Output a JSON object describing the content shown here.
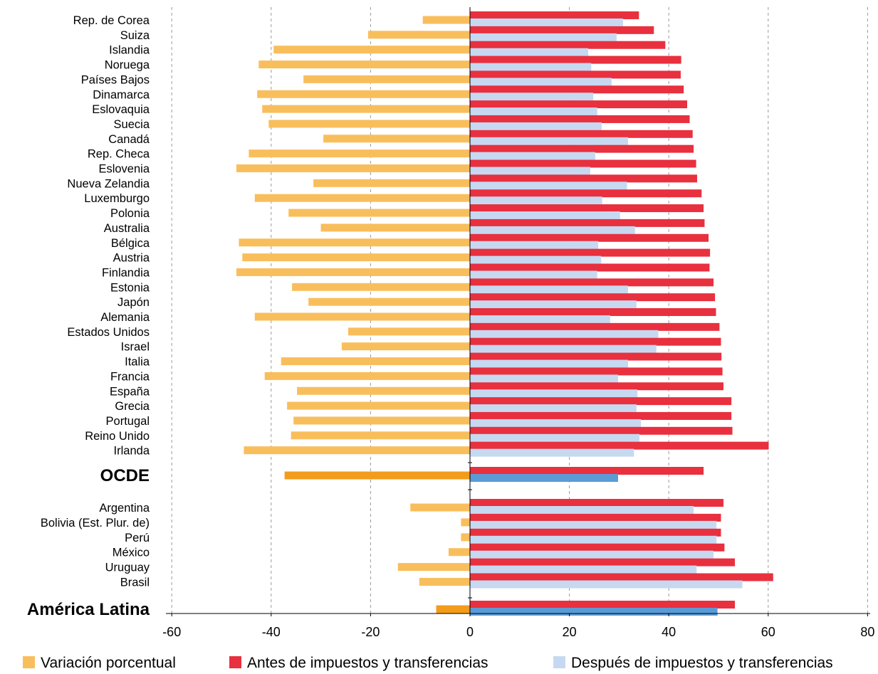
{
  "chart_data": {
    "type": "bar",
    "orientation": "horizontal",
    "grid": "vertical-dashed",
    "legend_position": "bottom",
    "xlim": [
      -60,
      80
    ],
    "x_ticks": [
      "-60",
      "-40",
      "-20",
      "0",
      "20",
      "40",
      "60",
      "80"
    ],
    "colors": {
      "variacion": "#f9be5c",
      "variacion_highlight": "#f39c1c",
      "antes": "#e8303f",
      "despues": "#c6d9f1",
      "despues_highlight": "#5b9bd5",
      "grid": "#999999"
    },
    "series_names": [
      "Variación porcentual",
      "Antes de impuestos y transferencias",
      "Después de impuestos y transferencias"
    ],
    "rows": [
      {
        "label": "Rep. de Corea",
        "bold": false,
        "variacion": -9.5,
        "antes": 34,
        "despues": 30.8
      },
      {
        "label": "Suiza",
        "bold": false,
        "variacion": -20.5,
        "antes": 37,
        "despues": 29.5
      },
      {
        "label": "Islandia",
        "bold": false,
        "variacion": -39.5,
        "antes": 39.3,
        "despues": 23.8
      },
      {
        "label": "Noruega",
        "bold": false,
        "variacion": -42.5,
        "antes": 42.5,
        "despues": 24.4
      },
      {
        "label": "Países Bajos",
        "bold": false,
        "variacion": -33.5,
        "antes": 42.4,
        "despues": 28.5
      },
      {
        "label": "Dinamarca",
        "bold": false,
        "variacion": -42.8,
        "antes": 43,
        "despues": 24.8
      },
      {
        "label": "Eslovaquia",
        "bold": false,
        "variacion": -41.8,
        "antes": 43.7,
        "despues": 25.6
      },
      {
        "label": "Suecia",
        "bold": false,
        "variacion": -40.5,
        "antes": 44.2,
        "despues": 26.5
      },
      {
        "label": "Canadá",
        "bold": false,
        "variacion": -29.5,
        "antes": 44.8,
        "despues": 31.8
      },
      {
        "label": "Rep. Checa",
        "bold": false,
        "variacion": -44.5,
        "antes": 45,
        "despues": 25.2
      },
      {
        "label": "Eslovenia",
        "bold": false,
        "variacion": -47,
        "antes": 45.5,
        "despues": 24.2
      },
      {
        "label": "Nueva Zelandia",
        "bold": false,
        "variacion": -31.5,
        "antes": 45.7,
        "despues": 31.6
      },
      {
        "label": "Luxemburgo",
        "bold": false,
        "variacion": -43.3,
        "antes": 46.6,
        "despues": 26.6
      },
      {
        "label": "Polonia",
        "bold": false,
        "variacion": -36.5,
        "antes": 47,
        "despues": 30.2
      },
      {
        "label": "Australia",
        "bold": false,
        "variacion": -30,
        "antes": 47.2,
        "despues": 33.2
      },
      {
        "label": "Bélgica",
        "bold": false,
        "variacion": -46.5,
        "antes": 48,
        "despues": 25.8
      },
      {
        "label": "Austria",
        "bold": false,
        "variacion": -45.8,
        "antes": 48.3,
        "despues": 26.4
      },
      {
        "label": "Finlandia",
        "bold": false,
        "variacion": -47,
        "antes": 48.2,
        "despues": 25.6
      },
      {
        "label": "Estonia",
        "bold": false,
        "variacion": -35.8,
        "antes": 49,
        "despues": 31.8
      },
      {
        "label": "Japón",
        "bold": false,
        "variacion": -32.5,
        "antes": 49.3,
        "despues": 33.5
      },
      {
        "label": "Alemania",
        "bold": false,
        "variacion": -43.3,
        "antes": 49.5,
        "despues": 28.2
      },
      {
        "label": "Estados Unidos",
        "bold": false,
        "variacion": -24.5,
        "antes": 50.2,
        "despues": 37.9
      },
      {
        "label": "Israel",
        "bold": false,
        "variacion": -25.8,
        "antes": 50.5,
        "despues": 37.5
      },
      {
        "label": "Italia",
        "bold": false,
        "variacion": -38,
        "antes": 50.6,
        "despues": 31.8
      },
      {
        "label": "Francia",
        "bold": false,
        "variacion": -41.3,
        "antes": 50.8,
        "despues": 29.8
      },
      {
        "label": "España",
        "bold": false,
        "variacion": -34.8,
        "antes": 51,
        "despues": 33.7
      },
      {
        "label": "Grecia",
        "bold": false,
        "variacion": -36.8,
        "antes": 52.6,
        "despues": 33.5
      },
      {
        "label": "Portugal",
        "bold": false,
        "variacion": -35.5,
        "antes": 52.6,
        "despues": 34.4
      },
      {
        "label": "Reino Unido",
        "bold": false,
        "variacion": -36,
        "antes": 52.8,
        "despues": 34.1
      },
      {
        "label": "Irlanda",
        "bold": false,
        "variacion": -45.5,
        "antes": 60.1,
        "despues": 33
      },
      {
        "label": "OCDE",
        "bold": true,
        "variacion": -37.3,
        "antes": 47,
        "despues": 29.8
      },
      {
        "label": "Argentina",
        "bold": false,
        "variacion": -12,
        "antes": 51,
        "despues": 45
      },
      {
        "label": "Bolivia (Est. Plur. de)",
        "bold": false,
        "variacion": -1.8,
        "antes": 50.5,
        "despues": 49.6
      },
      {
        "label": "Perú",
        "bold": false,
        "variacion": -1.8,
        "antes": 50.5,
        "despues": 49.6
      },
      {
        "label": "México",
        "bold": false,
        "variacion": -4.3,
        "antes": 51.2,
        "despues": 49
      },
      {
        "label": "Uruguay",
        "bold": false,
        "variacion": -14.5,
        "antes": 53.3,
        "despues": 45.6
      },
      {
        "label": "Brasil",
        "bold": false,
        "variacion": -10.2,
        "antes": 61,
        "despues": 54.8
      },
      {
        "label": "América Latina",
        "bold": true,
        "variacion": -6.8,
        "antes": 53.3,
        "despues": 49.8
      }
    ]
  }
}
